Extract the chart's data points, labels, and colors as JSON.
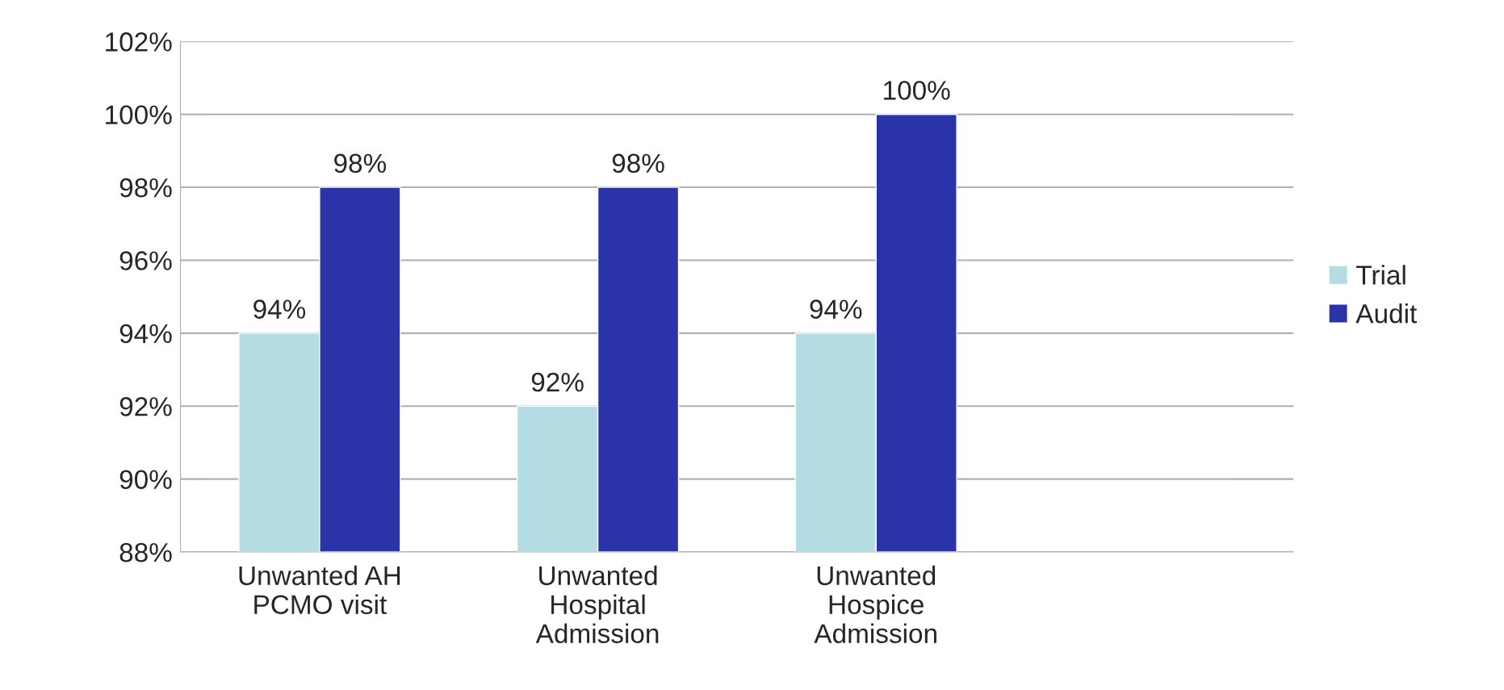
{
  "chart_data": {
    "type": "bar",
    "categories": [
      "Unwanted AH\nPCMO visit",
      "Unwanted\nHospital\nAdmission",
      "Unwanted\nHospice\nAdmission",
      null
    ],
    "series": [
      {
        "name": "Trial",
        "color": "#b4dde3",
        "values": [
          94,
          92,
          94,
          null
        ],
        "value_labels": [
          "94%",
          "92%",
          "94%",
          null
        ]
      },
      {
        "name": "Audit",
        "color": "#2a34a8",
        "values": [
          98,
          98,
          100,
          null
        ],
        "value_labels": [
          "98%",
          "98%",
          "100%",
          null
        ]
      }
    ],
    "ylim": [
      88,
      102
    ],
    "yticks": [
      {
        "value": 88,
        "label": "88%"
      },
      {
        "value": 90,
        "label": "90%"
      },
      {
        "value": 92,
        "label": "92%"
      },
      {
        "value": 94,
        "label": "94%"
      },
      {
        "value": 96,
        "label": "96%"
      },
      {
        "value": 98,
        "label": "98%"
      },
      {
        "value": 100,
        "label": "100%"
      },
      {
        "value": 102,
        "label": "102%"
      }
    ],
    "grid": "y",
    "legend": "right"
  }
}
